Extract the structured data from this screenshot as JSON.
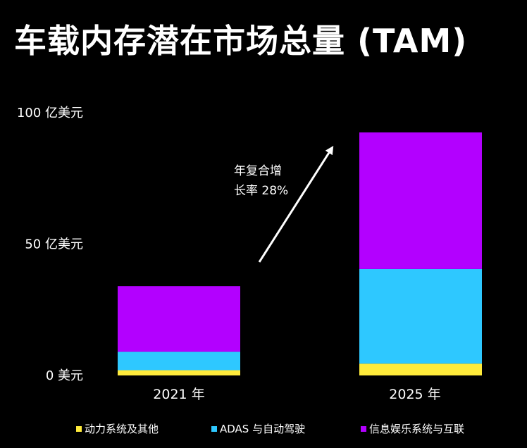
{
  "title": "车载内存潜在市场总量 (TAM)",
  "chart_data": {
    "type": "bar",
    "stacked": true,
    "categories": [
      "2021 年",
      "2025 年"
    ],
    "series": [
      {
        "name": "动力系统及其他",
        "color": "#ffeb3b",
        "values": [
          2,
          4.5
        ]
      },
      {
        "name": "ADAS 与自动驾驶",
        "color": "#2ec8ff",
        "values": [
          7,
          36
        ]
      },
      {
        "name": "信息娱乐系统与互联",
        "color": "#b300ff",
        "values": [
          25,
          52
        ]
      }
    ],
    "y_ticks": [
      {
        "value": 0,
        "label": "0 美元"
      },
      {
        "value": 50,
        "label": "50 亿美元"
      },
      {
        "value": 100,
        "label": "100 亿美元"
      }
    ],
    "ylim": [
      0,
      100
    ],
    "annotation": {
      "lines": [
        "年复合增",
        "长率 28%"
      ]
    },
    "legend": "bottom"
  }
}
